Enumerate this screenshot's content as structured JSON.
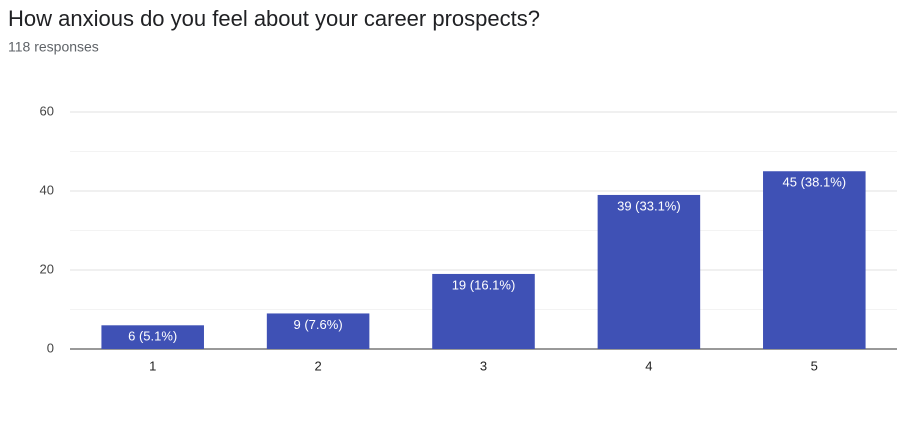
{
  "chart_data": {
    "type": "bar",
    "title": "How anxious do you feel about your career prospects?",
    "subtitle": "118 responses",
    "categories": [
      "1",
      "2",
      "3",
      "4",
      "5"
    ],
    "values": [
      6,
      9,
      19,
      39,
      45
    ],
    "value_labels": [
      "6 (5.1%)",
      "9 (7.6%)",
      "19 (16.1%)",
      "39 (33.1%)",
      "45 (38.1%)"
    ],
    "color": "#3f51b5",
    "ylim": [
      0,
      60
    ],
    "yticks": [
      0,
      20,
      40,
      60
    ],
    "minor_yticks": [
      10,
      30,
      50
    ],
    "grid": true
  }
}
